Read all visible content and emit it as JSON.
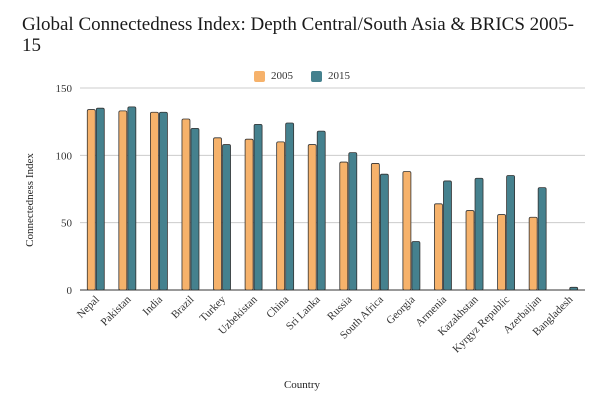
{
  "chart_data": {
    "type": "bar",
    "title": "Global Connectedness Index: Depth Central/South Asia & BRICS 2005-15",
    "xlabel": "Country",
    "ylabel": "Connectedness Index",
    "ylim": [
      0,
      150
    ],
    "yticks": [
      0,
      50,
      100,
      150
    ],
    "grid": true,
    "legend_position": "top-center",
    "categories": [
      "Nepal",
      "Pakistan",
      "India",
      "Brazil",
      "Turkey",
      "Uzbekistan",
      "China",
      "Sri Lanka",
      "Russia",
      "South Africa",
      "Georgia",
      "Armenia",
      "Kazakhstan",
      "Kyrgyz Republic",
      "Azerbaijan",
      "Bangladesh"
    ],
    "series": [
      {
        "name": "2005",
        "color": "#f6b26b",
        "values": [
          134,
          133,
          132,
          127,
          113,
          112,
          110,
          108,
          95,
          94,
          88,
          64,
          59,
          56,
          54,
          0
        ]
      },
      {
        "name": "2015",
        "color": "#45818e",
        "values": [
          135,
          136,
          132,
          120,
          108,
          123,
          124,
          118,
          102,
          86,
          36,
          81,
          83,
          85,
          76,
          2
        ]
      }
    ]
  }
}
